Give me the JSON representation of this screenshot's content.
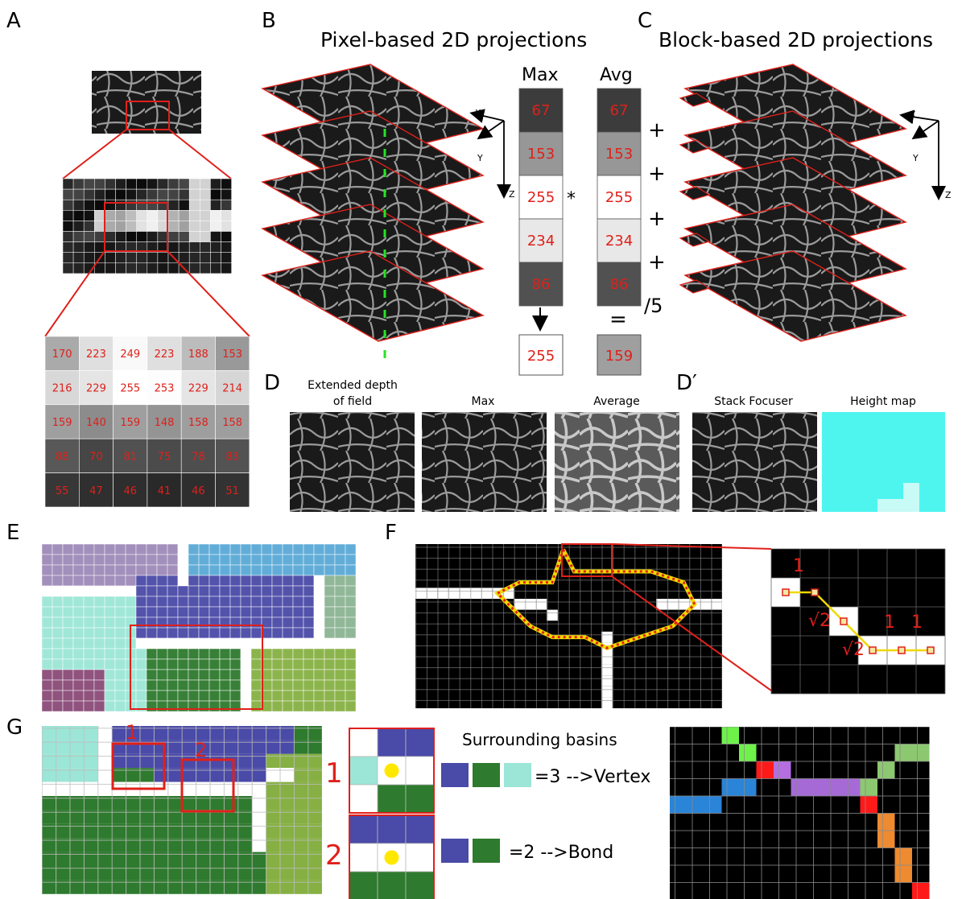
{
  "panel_letters": {
    "A": "A",
    "B": "B",
    "C": "C",
    "D": "D",
    "Dp": "D′",
    "E": "E",
    "F": "F",
    "G": "G"
  },
  "panel_b": {
    "title": "Pixel-based 2D projections",
    "max_header": "Max",
    "avg_header": "Avg",
    "stack_values": [
      "67",
      "153",
      "255",
      "234",
      "86"
    ],
    "max_result": "255",
    "avg_result": "159",
    "star": "*",
    "equals": "=",
    "divide": "/5",
    "plus": "+",
    "axis_x": "X",
    "axis_y": "Y",
    "axis_z": "Z"
  },
  "panel_c": {
    "title": "Block-based 2D projections"
  },
  "panel_a": {
    "grid_values": [
      [
        "170",
        "223",
        "249",
        "223",
        "188",
        "153"
      ],
      [
        "216",
        "229",
        "255",
        "253",
        "229",
        "214"
      ],
      [
        "159",
        "140",
        "159",
        "148",
        "158",
        "158"
      ],
      [
        "88",
        "70",
        "81",
        "75",
        "78",
        "83"
      ],
      [
        "55",
        "47",
        "46",
        "41",
        "46",
        "51"
      ]
    ]
  },
  "panel_d": {
    "labels": [
      "Extended depth\nof field",
      "Max",
      "Average"
    ],
    "label_edf_1": "Extended depth",
    "label_edf_2": "of field",
    "label_max": "Max",
    "label_avg": "Average",
    "label_stack": "Stack Focuser",
    "label_height": "Height map"
  },
  "panel_f": {
    "weights": [
      "1",
      "√2",
      "√2",
      "1",
      "1"
    ]
  },
  "panel_g": {
    "markers": [
      "1",
      "2"
    ],
    "surrounding_title": "Surrounding basins",
    "vertex_text": "=3 -->Vertex",
    "bond_text": "=2 -->Bond"
  },
  "colors": {
    "red": "#e0201a",
    "purple_basin": "#9e8ab8",
    "lightblue_basin": "#5aa9d6",
    "blue_basin": "#4a4aa8",
    "cyan_basin": "#9be6d6",
    "sage_basin": "#8cb494",
    "green_basin": "#2e7a2e",
    "olive_basin": "#86b043",
    "magenta_basin": "#8a4a78",
    "height_cyan": "#4ef5ef",
    "path_yellow": "#f0d800"
  }
}
